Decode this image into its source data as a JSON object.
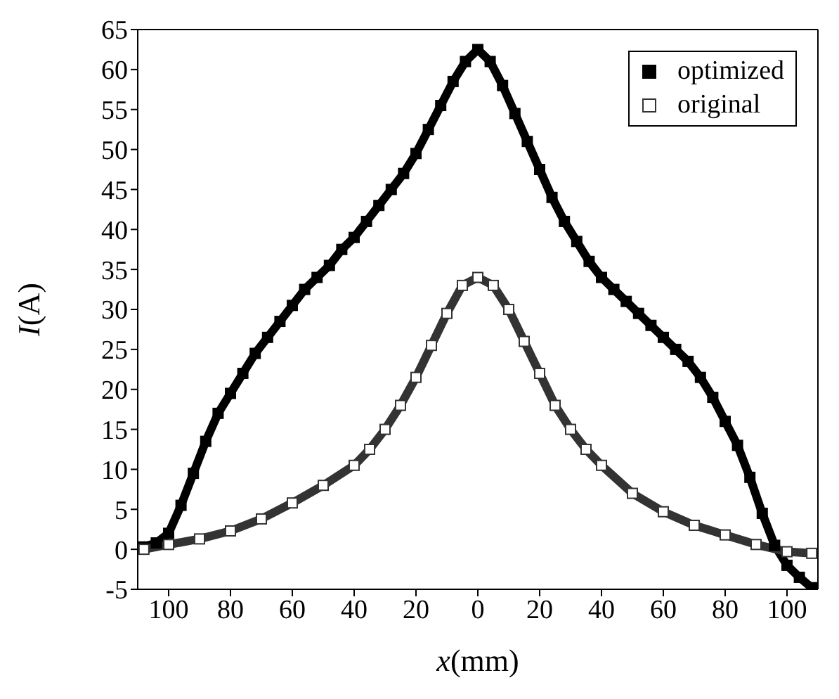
{
  "chart_data": {
    "type": "line",
    "xlabel": "x(mm)",
    "ylabel": "I(A)",
    "xlim": [
      -110,
      110
    ],
    "xticks": [
      {
        "value": -100,
        "label": "100"
      },
      {
        "value": -80,
        "label": "80"
      },
      {
        "value": -60,
        "label": "60"
      },
      {
        "value": -40,
        "label": "40"
      },
      {
        "value": -20,
        "label": "20"
      },
      0,
      20,
      40,
      60,
      80,
      100
    ],
    "ylim": [
      -5,
      65
    ],
    "yticks": [
      -5,
      0,
      5,
      10,
      15,
      20,
      25,
      30,
      35,
      40,
      45,
      50,
      55,
      60,
      65
    ],
    "legend": "top right",
    "marker": "square",
    "series": [
      {
        "name": "optimized",
        "color": "#000000",
        "x": [
          -108,
          -104,
          -100,
          -96,
          -92,
          -88,
          -84,
          -80,
          -76,
          -72,
          -68,
          -64,
          -60,
          -56,
          -52,
          -48,
          -44,
          -40,
          -36,
          -32,
          -28,
          -24,
          -20,
          -16,
          -12,
          -8,
          -4,
          0,
          4,
          8,
          12,
          16,
          20,
          24,
          28,
          32,
          36,
          40,
          44,
          48,
          52,
          56,
          60,
          64,
          68,
          72,
          76,
          80,
          84,
          88,
          92,
          96,
          100,
          104,
          108
        ],
        "values": [
          0.3,
          0.8,
          2,
          5.5,
          9.5,
          13.5,
          17,
          19.5,
          22,
          24.5,
          26.5,
          28.5,
          30.5,
          32.5,
          34,
          35.5,
          37.5,
          39,
          41,
          43,
          45,
          47,
          49.5,
          52.5,
          55.5,
          58.5,
          61,
          62.5,
          61,
          58,
          54.5,
          51,
          47.5,
          44,
          41,
          38.5,
          36,
          34,
          32.5,
          31,
          29.5,
          28,
          26.5,
          25,
          23.5,
          21.5,
          19,
          16,
          13,
          9,
          4.5,
          0.5,
          -2,
          -3.5,
          -4.8
        ]
      },
      {
        "name": "original",
        "color": "#333333",
        "x": [
          -108,
          -100,
          -90,
          -80,
          -70,
          -60,
          -50,
          -40,
          -35,
          -30,
          -25,
          -20,
          -15,
          -10,
          -5,
          0,
          5,
          10,
          15,
          20,
          25,
          30,
          35,
          40,
          50,
          60,
          70,
          80,
          90,
          100,
          108
        ],
        "values": [
          0,
          0.6,
          1.3,
          2.3,
          3.8,
          5.8,
          8,
          10.5,
          12.5,
          15,
          18,
          21.5,
          25.5,
          29.5,
          33,
          34,
          33,
          30,
          26,
          22,
          18,
          15,
          12.5,
          10.5,
          7,
          4.7,
          3,
          1.8,
          0.6,
          -0.3,
          -0.5
        ]
      }
    ]
  }
}
